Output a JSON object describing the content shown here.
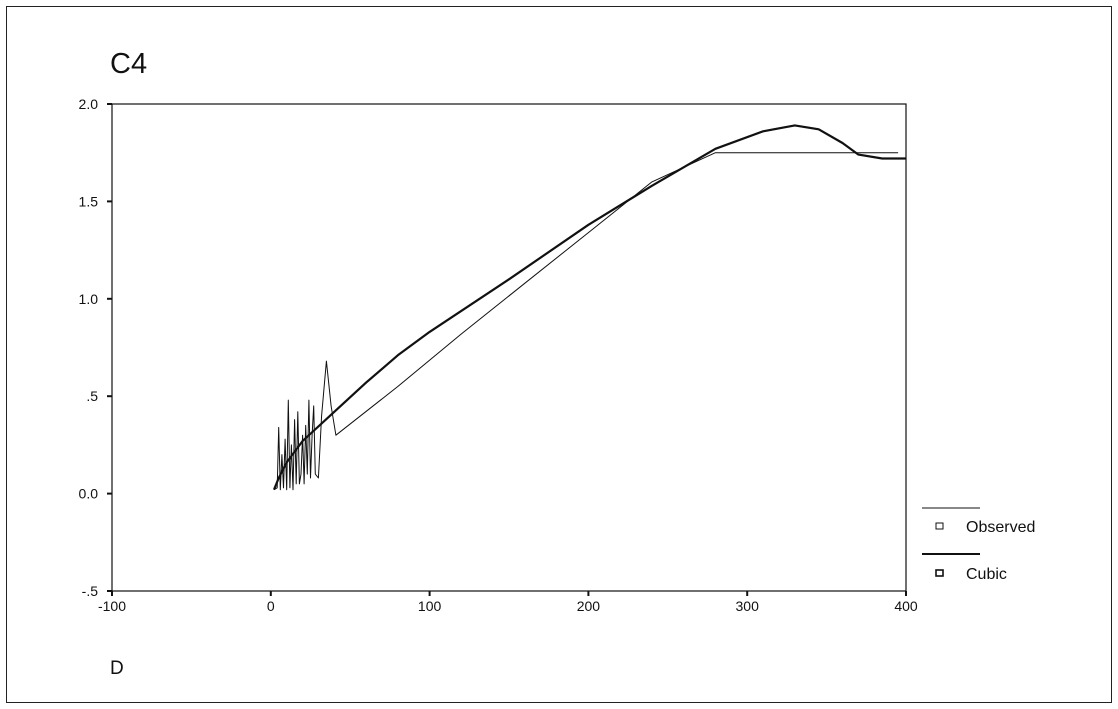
{
  "chart_data": {
    "type": "line",
    "title": "C4",
    "xlabel": "D",
    "ylabel": "",
    "xlim": [
      -100,
      400
    ],
    "ylim": [
      -0.5,
      2.0
    ],
    "x_ticks": [
      -100,
      0,
      100,
      200,
      300,
      400
    ],
    "x_tick_labels": [
      "-100",
      "0",
      "100",
      "200",
      "300",
      "400"
    ],
    "y_ticks": [
      -0.5,
      0.0,
      0.5,
      1.0,
      1.5,
      2.0
    ],
    "y_tick_labels": [
      "-.5",
      "0.0",
      ".5",
      "1.0",
      "1.5",
      "2.0"
    ],
    "grid": false,
    "legend_position": "right",
    "series": [
      {
        "name": "Observed",
        "style": "thin",
        "x": [
          2,
          4,
          5,
          6,
          7,
          8,
          9,
          10,
          11,
          12,
          13,
          14,
          15,
          16,
          17,
          18,
          19,
          20,
          21,
          22,
          23,
          24,
          25,
          26,
          27,
          28,
          30,
          32,
          35,
          38,
          41,
          80,
          120,
          160,
          200,
          240,
          280,
          300,
          340,
          395
        ],
        "y": [
          0.02,
          0.03,
          0.34,
          0.02,
          0.2,
          0.03,
          0.28,
          0.02,
          0.48,
          0.03,
          0.25,
          0.02,
          0.38,
          0.05,
          0.42,
          0.05,
          0.1,
          0.3,
          0.05,
          0.35,
          0.1,
          0.48,
          0.08,
          0.3,
          0.45,
          0.1,
          0.08,
          0.4,
          0.68,
          0.45,
          0.3,
          0.55,
          0.82,
          1.08,
          1.34,
          1.6,
          1.75,
          1.75,
          1.75,
          1.75
        ]
      },
      {
        "name": "Cubic",
        "style": "thick",
        "x": [
          2,
          5,
          10,
          20,
          40,
          60,
          80,
          100,
          150,
          200,
          240,
          280,
          310,
          330,
          345,
          360,
          370,
          385,
          400
        ],
        "y": [
          0.02,
          0.08,
          0.16,
          0.27,
          0.42,
          0.57,
          0.71,
          0.83,
          1.1,
          1.38,
          1.58,
          1.77,
          1.86,
          1.89,
          1.87,
          1.8,
          1.74,
          1.72,
          1.72
        ]
      }
    ]
  }
}
